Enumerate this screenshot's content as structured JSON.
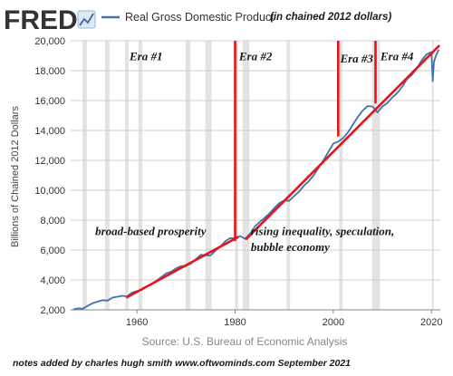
{
  "header": {
    "logo_text": "FRED",
    "series_title": "Real Gross Domestic Product",
    "units_note": "(in chained 2012 dollars)"
  },
  "footer": {
    "source": "Source: U.S. Bureau of Economic Analysis",
    "credit": "notes added by charles hugh smith   www.oftwominds.com  September 2021"
  },
  "colors": {
    "series": "#4472a8",
    "annotation": "#e8141b",
    "recession": "#e3e3e3",
    "grid": "#cfcfcf"
  },
  "chart_data": {
    "type": "line",
    "ylabel": "Billions of Chained 2012 Dollars",
    "xlim": [
      1946.5,
      2021.8
    ],
    "ylim": [
      2000,
      20000
    ],
    "x_ticks": [
      1960,
      1980,
      2000,
      2020
    ],
    "y_ticks": [
      2000,
      4000,
      6000,
      8000,
      10000,
      12000,
      14000,
      16000,
      18000,
      20000
    ],
    "grid": true,
    "recessions": [
      [
        1948.9,
        1949.8
      ],
      [
        1953.5,
        1954.4
      ],
      [
        1957.6,
        1958.3
      ],
      [
        1960.3,
        1961.1
      ],
      [
        1969.9,
        1970.9
      ],
      [
        1973.9,
        1975.2
      ],
      [
        1980.0,
        1980.6
      ],
      [
        1981.5,
        1982.9
      ],
      [
        1990.5,
        1991.2
      ],
      [
        2001.2,
        2001.9
      ],
      [
        2007.9,
        2009.5
      ],
      [
        2020.1,
        2020.4
      ]
    ],
    "series": [
      {
        "x": [
          1947,
          1948,
          1949,
          1950,
          1951,
          1952,
          1953,
          1954,
          1955,
          1956,
          1957,
          1958,
          1959,
          1960,
          1961,
          1962,
          1963,
          1964,
          1965,
          1966,
          1967,
          1968,
          1969,
          1970,
          1971,
          1972,
          1973,
          1974,
          1975,
          1976,
          1977,
          1978,
          1979,
          1980,
          1981,
          1982,
          1983,
          1984,
          1985,
          1986,
          1987,
          1988,
          1989,
          1990,
          1991,
          1992,
          1993,
          1994,
          1995,
          1996,
          1997,
          1998,
          1999,
          2000,
          2001,
          2002,
          2003,
          2004,
          2005,
          2006,
          2007,
          2008,
          2009,
          2010,
          2011,
          2012,
          2013,
          2014,
          2015,
          2016,
          2017,
          2018,
          2019,
          2020.0,
          2020.25,
          2020.5,
          2021.0,
          2021.5
        ],
        "values": [
          2030,
          2100,
          2080,
          2280,
          2450,
          2550,
          2650,
          2620,
          2820,
          2880,
          2940,
          2900,
          3150,
          3260,
          3340,
          3550,
          3700,
          3950,
          4200,
          4450,
          4560,
          4780,
          4930,
          4940,
          5100,
          5390,
          5690,
          5650,
          5640,
          5960,
          6240,
          6590,
          6800,
          6780,
          6940,
          6760,
          7070,
          7570,
          7880,
          8160,
          8450,
          8820,
          9140,
          9320,
          9290,
          9600,
          9900,
          10300,
          10600,
          11000,
          11500,
          12000,
          12570,
          13130,
          13260,
          13490,
          13880,
          14400,
          14910,
          15340,
          15630,
          15600,
          15210,
          15600,
          15840,
          16200,
          16500,
          16910,
          17430,
          17730,
          18140,
          18690,
          19100,
          19250,
          17300,
          18600,
          19080,
          19400
        ]
      }
    ],
    "era_labels": [
      {
        "text": "Era #1",
        "x": 1958.5,
        "y": 18700
      },
      {
        "text": "Era #2",
        "x": 1980.8,
        "y": 18700
      },
      {
        "text": "Era #3",
        "x": 2001.4,
        "y": 18550
      },
      {
        "text": "Era #4",
        "x": 2009.6,
        "y": 18700
      }
    ],
    "annotations": [
      {
        "text": "broad-based prosperity",
        "x": 1951.5,
        "y": 7000
      },
      {
        "text": "rising inequality, speculation,",
        "x": 1983.2,
        "y": 7000
      },
      {
        "text": "bubble economy",
        "x": 1983.2,
        "y": 5950
      }
    ],
    "trend_lines": [
      {
        "x": [
          1958.0,
          1980.5
        ],
        "y": [
          2850,
          6850
        ]
      },
      {
        "x": [
          1982.3,
          2021.5
        ],
        "y": [
          6750,
          19650
        ]
      }
    ],
    "era_dividers": [
      {
        "x": 1980.0,
        "y": [
          6600,
          20000
        ]
      },
      {
        "x": 2001.0,
        "y": [
          13600,
          20000
        ]
      },
      {
        "x": 2008.6,
        "y": [
          15800,
          20000
        ]
      }
    ]
  }
}
